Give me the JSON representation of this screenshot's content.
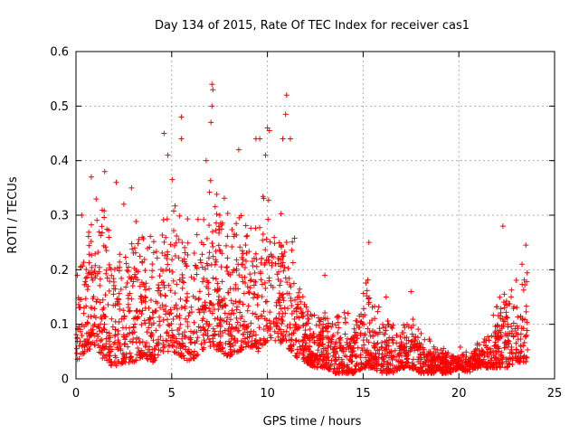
{
  "chart_data": {
    "type": "scatter",
    "title": "Day 134 of 2015, Rate Of TEC Index for receiver cas1",
    "xlabel": "GPS time / hours",
    "ylabel": "ROTI / TECUs",
    "xlim": [
      0,
      25
    ],
    "ylim": [
      0,
      0.6
    ],
    "xticks": [
      0,
      5,
      10,
      15,
      20,
      25
    ],
    "yticks": [
      0,
      0.1,
      0.2,
      0.3,
      0.4,
      0.5,
      0.6
    ],
    "grid": true,
    "marker": "plus",
    "series": [
      {
        "name": "ROTI",
        "color": "#ff0000",
        "envelope": {
          "x": [
            0,
            0.5,
            1,
            1.5,
            2,
            2.5,
            3,
            3.5,
            4,
            4.5,
            5,
            5.5,
            6,
            6.5,
            7,
            7.5,
            8,
            8.5,
            9,
            9.5,
            10,
            10.5,
            11,
            11.5,
            12,
            12.5,
            13,
            13.5,
            14,
            14.5,
            15,
            15.5,
            16,
            16.5,
            17,
            17.5,
            18,
            18.5,
            19,
            19.5,
            20,
            20.5,
            21,
            21.5,
            22,
            22.5,
            23,
            23.5
          ],
          "base": [
            0.03,
            0.05,
            0.06,
            0.03,
            0.02,
            0.03,
            0.03,
            0.04,
            0.03,
            0.05,
            0.05,
            0.04,
            0.03,
            0.05,
            0.06,
            0.05,
            0.04,
            0.05,
            0.06,
            0.05,
            0.07,
            0.07,
            0.06,
            0.04,
            0.03,
            0.02,
            0.02,
            0.01,
            0.01,
            0.01,
            0.02,
            0.02,
            0.01,
            0.01,
            0.02,
            0.02,
            0.01,
            0.01,
            0.01,
            0.01,
            0.02,
            0.01,
            0.02,
            0.02,
            0.02,
            0.02,
            0.03,
            0.03
          ],
          "top": [
            0.22,
            0.28,
            0.33,
            0.36,
            0.31,
            0.26,
            0.33,
            0.3,
            0.27,
            0.36,
            0.4,
            0.36,
            0.32,
            0.35,
            0.38,
            0.37,
            0.3,
            0.33,
            0.3,
            0.33,
            0.38,
            0.35,
            0.3,
            0.27,
            0.15,
            0.12,
            0.14,
            0.13,
            0.15,
            0.12,
            0.2,
            0.17,
            0.13,
            0.12,
            0.1,
            0.13,
            0.1,
            0.08,
            0.07,
            0.05,
            0.06,
            0.05,
            0.07,
            0.1,
            0.17,
            0.21,
            0.19,
            0.22
          ]
        },
        "outliers": [
          [
            0.3,
            0.3
          ],
          [
            0.8,
            0.37
          ],
          [
            1.5,
            0.38
          ],
          [
            2.1,
            0.36
          ],
          [
            2.5,
            0.32
          ],
          [
            2.9,
            0.35
          ],
          [
            4.6,
            0.45
          ],
          [
            4.8,
            0.41
          ],
          [
            5.5,
            0.48
          ],
          [
            5.5,
            0.44
          ],
          [
            6.8,
            0.4
          ],
          [
            7.1,
            0.54
          ],
          [
            7.15,
            0.53
          ],
          [
            7.1,
            0.5
          ],
          [
            7.05,
            0.47
          ],
          [
            8.5,
            0.42
          ],
          [
            9.4,
            0.44
          ],
          [
            9.6,
            0.44
          ],
          [
            10.0,
            0.46
          ],
          [
            10.1,
            0.455
          ],
          [
            10.8,
            0.44
          ],
          [
            11.0,
            0.52
          ],
          [
            10.95,
            0.485
          ],
          [
            11.2,
            0.44
          ],
          [
            9.9,
            0.41
          ],
          [
            13.0,
            0.19
          ],
          [
            15.3,
            0.25
          ],
          [
            16.2,
            0.15
          ],
          [
            17.5,
            0.16
          ],
          [
            22.3,
            0.28
          ],
          [
            23.5,
            0.245
          ],
          [
            23.3,
            0.21
          ]
        ]
      }
    ]
  }
}
